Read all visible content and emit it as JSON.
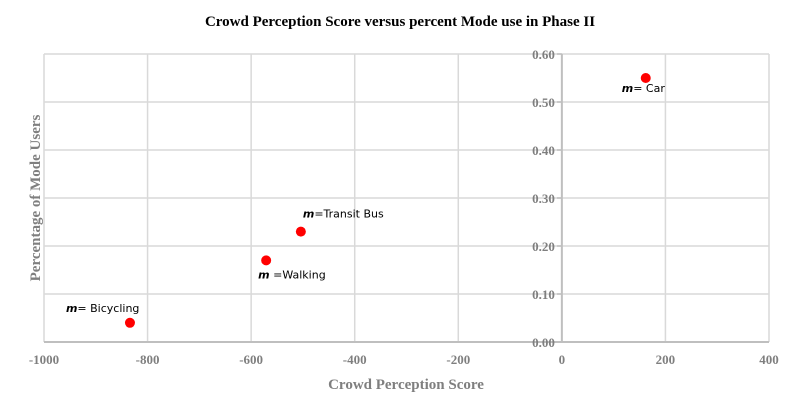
{
  "chart_data": {
    "type": "scatter",
    "title": "Crowd Perception Score versus percent Mode use in Phase II",
    "xlabel": "Crowd Perception Score",
    "ylabel": "Percentage of Mode Users",
    "xlim": [
      -1000,
      400
    ],
    "ylim": [
      0,
      0.6
    ],
    "xticks": [
      "-1000",
      "-800",
      "-600",
      "-400",
      "-200",
      "0",
      "200",
      "400"
    ],
    "xtick_values": [
      -1000,
      -800,
      -600,
      -400,
      -200,
      0,
      200,
      400
    ],
    "yticks": [
      "0.00",
      "0.10",
      "0.20",
      "0.30",
      "0.40",
      "0.50",
      "0.60"
    ],
    "ytick_values": [
      0,
      0.1,
      0.2,
      0.3,
      0.4,
      0.5,
      0.6
    ],
    "grid": true,
    "marker_color": "#ff0000",
    "points": [
      {
        "prefix": "m",
        "label": "= Car",
        "x": 162,
        "y": 0.55,
        "label_pos": "below-left"
      },
      {
        "prefix": "m",
        "label": "=Transit Bus",
        "x": -504,
        "y": 0.23,
        "label_pos": "above"
      },
      {
        "prefix": "m",
        "label": " =Walking",
        "x": -571,
        "y": 0.17,
        "label_pos": "below"
      },
      {
        "prefix": "m",
        "label": "= Bicycling",
        "x": -834,
        "y": 0.04,
        "label_pos": "above-left"
      }
    ]
  }
}
